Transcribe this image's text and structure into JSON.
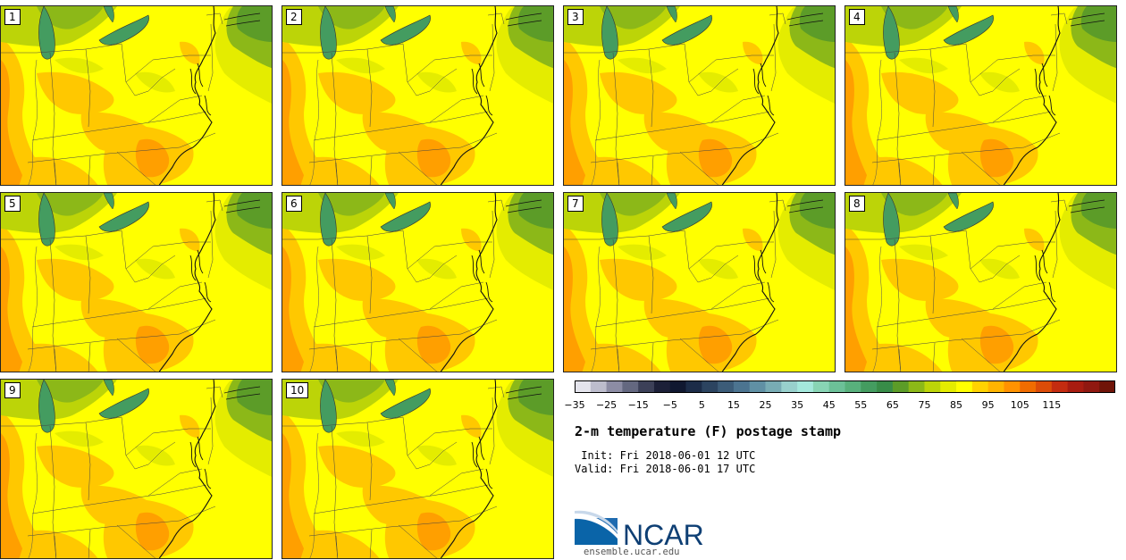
{
  "panels": [
    "1",
    "2",
    "3",
    "4",
    "5",
    "6",
    "7",
    "8",
    "9",
    "10"
  ],
  "colorbar": {
    "colors": [
      "#e4e4ec",
      "#bcbccc",
      "#8c8ca4",
      "#646880",
      "#3c4058",
      "#1c2038",
      "#101830",
      "#1c2c48",
      "#2c4460",
      "#3c5c78",
      "#4c7490",
      "#6090a4",
      "#78acb4",
      "#98d0cc",
      "#a4e8dc",
      "#88d4b4",
      "#6cc098",
      "#58b07c",
      "#449c60",
      "#388c48",
      "#5c9c28",
      "#8cb818",
      "#bcd408",
      "#e4ec00",
      "#ffff00",
      "#ffd200",
      "#ffb400",
      "#ff9200",
      "#f06c00",
      "#dc4c08",
      "#c42c10",
      "#a81c10",
      "#901810",
      "#701408"
    ],
    "tick_labels": [
      "−35",
      "−25",
      "−15",
      "−5",
      "5",
      "15",
      "25",
      "35",
      "45",
      "55",
      "65",
      "75",
      "85",
      "95",
      "105",
      "115"
    ]
  },
  "title": "2-m temperature (F) postage stamp",
  "init": " Init: Fri 2018-06-01 12 UTC",
  "valid": "Valid: Fri 2018-06-01 17 UTC",
  "logo_text": "NCAR",
  "url": "ensemble.ucar.edu"
}
